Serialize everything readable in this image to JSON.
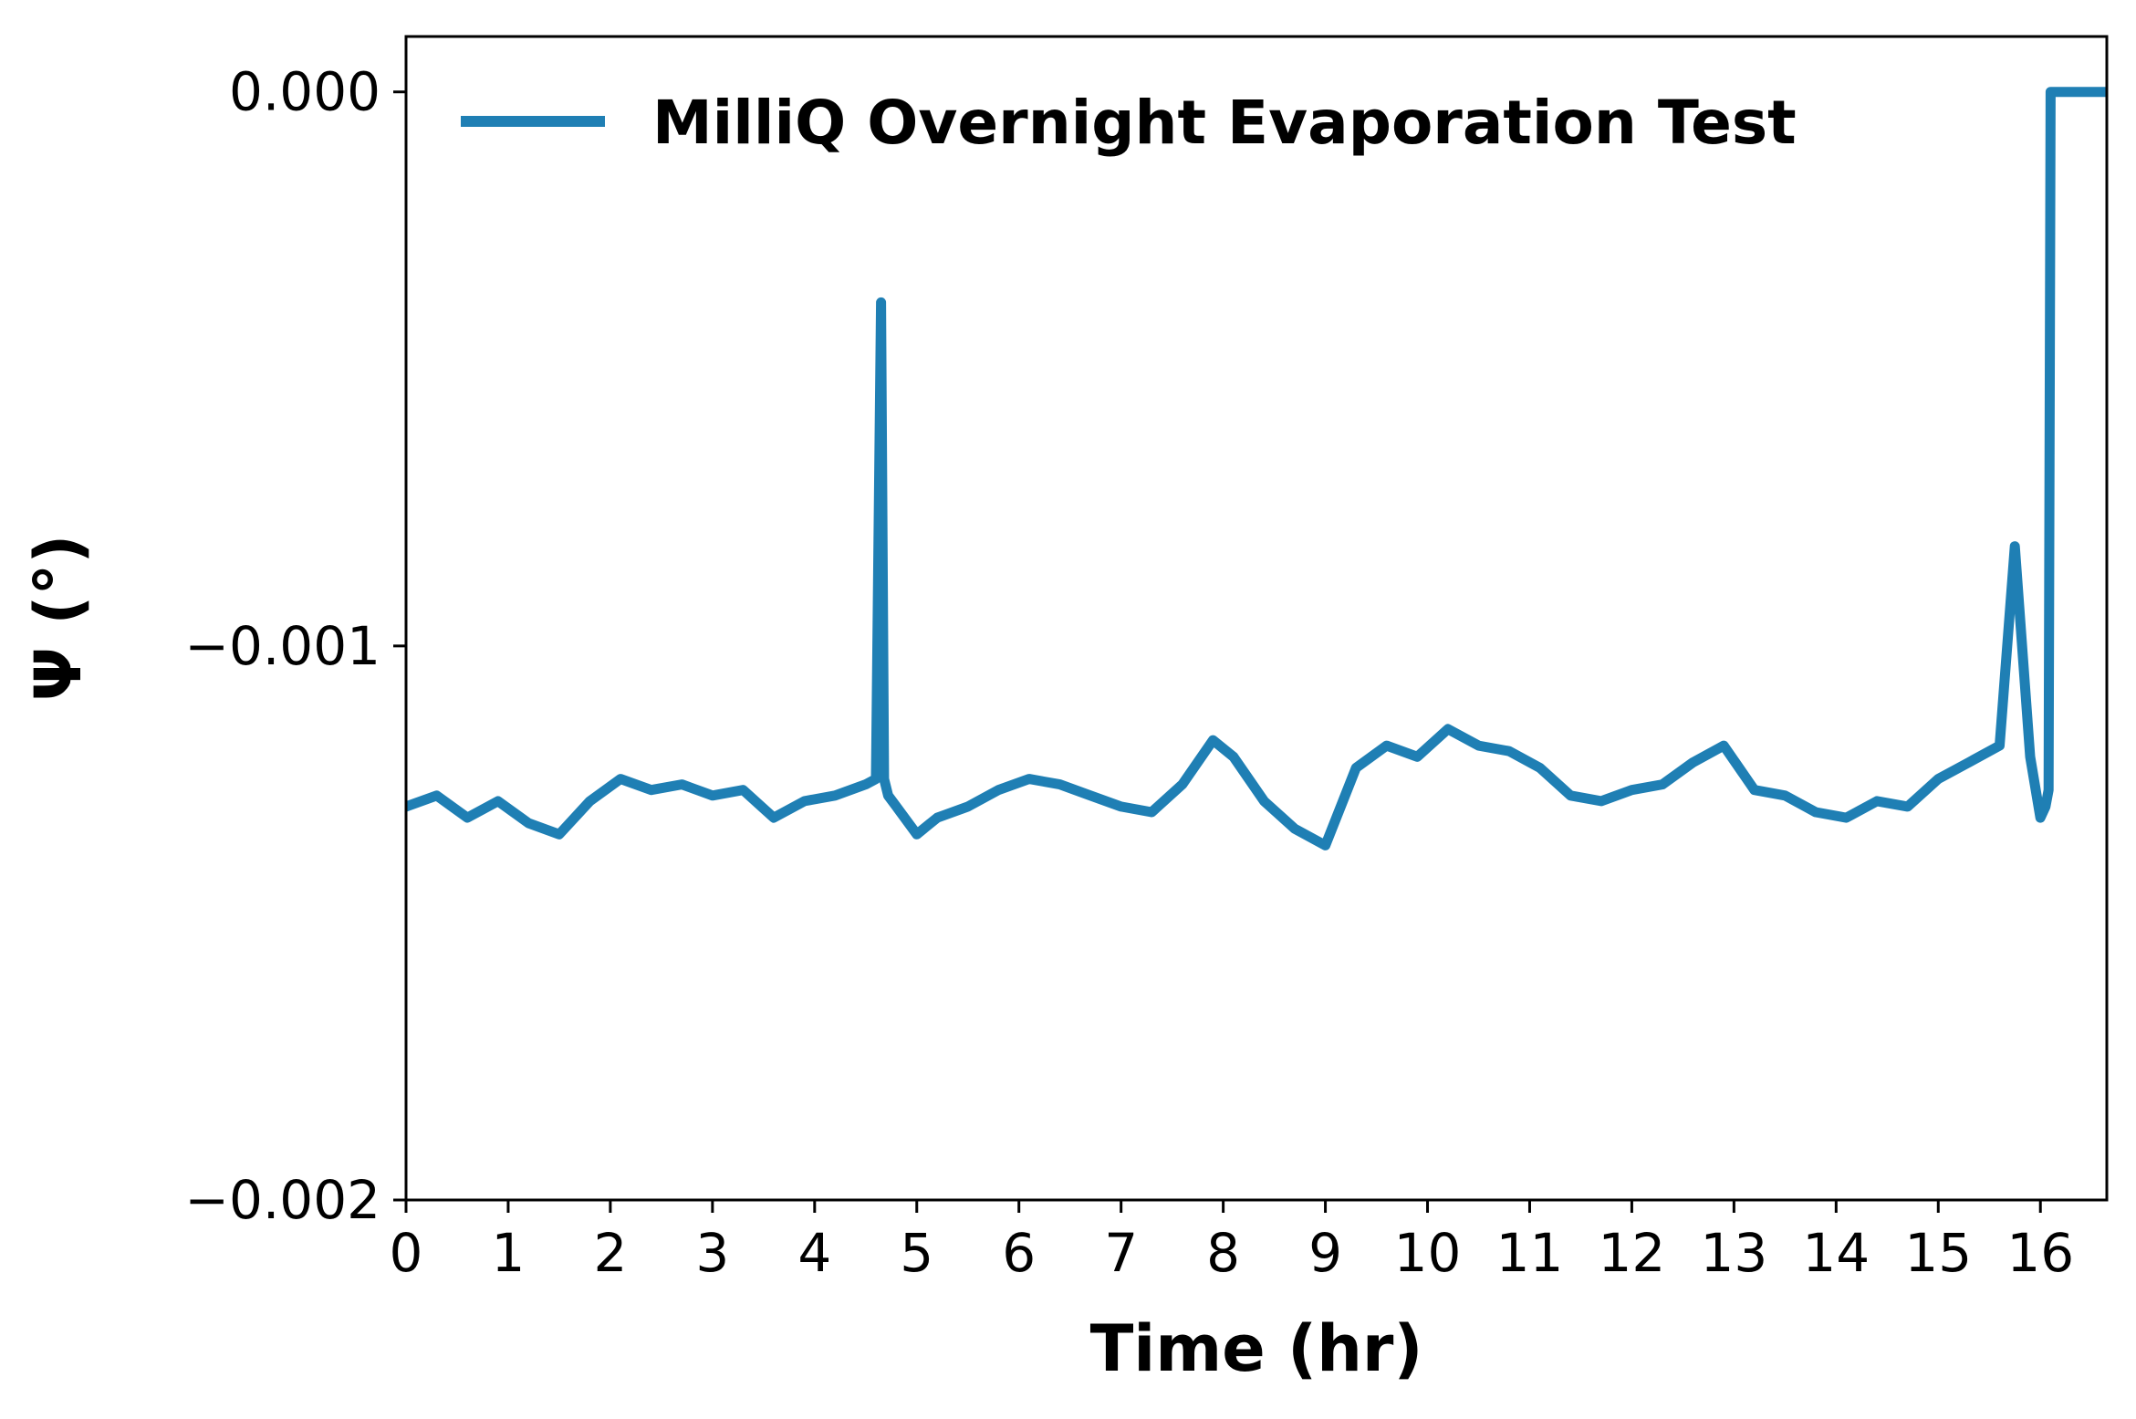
{
  "chart_data": {
    "type": "line",
    "xlabel": "Time (hr)",
    "ylabel": "Ψ (°)",
    "xlim": [
      0,
      16.65
    ],
    "ylim": [
      -0.002,
      0.0001
    ],
    "x_ticks": [
      0,
      1,
      2,
      3,
      4,
      5,
      6,
      7,
      8,
      9,
      10,
      11,
      12,
      13,
      14,
      15,
      16
    ],
    "x_tick_labels": [
      "0",
      "1",
      "2",
      "3",
      "4",
      "5",
      "6",
      "7",
      "8",
      "9",
      "10",
      "11",
      "12",
      "13",
      "14",
      "15",
      "16"
    ],
    "y_ticks": [
      0.0,
      -0.001,
      -0.002
    ],
    "y_tick_labels": [
      "0.000",
      "−0.001",
      "−0.002"
    ],
    "grid": false,
    "legend_position": "top",
    "series": [
      {
        "name": "MilliQ Overnight Evaporation Test",
        "color": "#1f7fb4",
        "x": [
          0.0,
          0.3,
          0.6,
          0.9,
          1.2,
          1.5,
          1.8,
          2.1,
          2.4,
          2.7,
          3.0,
          3.3,
          3.6,
          3.9,
          4.2,
          4.5,
          4.6,
          4.65,
          4.68,
          4.72,
          4.8,
          5.0,
          5.2,
          5.5,
          5.8,
          6.1,
          6.4,
          6.7,
          7.0,
          7.3,
          7.6,
          7.9,
          8.1,
          8.4,
          8.7,
          9.0,
          9.3,
          9.6,
          9.9,
          10.2,
          10.5,
          10.8,
          11.1,
          11.4,
          11.7,
          12.0,
          12.3,
          12.6,
          12.9,
          13.2,
          13.5,
          13.8,
          14.1,
          14.4,
          14.7,
          15.0,
          15.3,
          15.6,
          15.75,
          15.9,
          16.0,
          16.05,
          16.08,
          16.1,
          16.65
        ],
        "values": [
          -0.00129,
          -0.00127,
          -0.00131,
          -0.00128,
          -0.00132,
          -0.00134,
          -0.00128,
          -0.00124,
          -0.00126,
          -0.00125,
          -0.00127,
          -0.00126,
          -0.00131,
          -0.00128,
          -0.00127,
          -0.00125,
          -0.00124,
          -0.00038,
          -0.00124,
          -0.00127,
          -0.00129,
          -0.00134,
          -0.00131,
          -0.00129,
          -0.00126,
          -0.00124,
          -0.00125,
          -0.00127,
          -0.00129,
          -0.0013,
          -0.00125,
          -0.00117,
          -0.0012,
          -0.00128,
          -0.00133,
          -0.00136,
          -0.00122,
          -0.00118,
          -0.0012,
          -0.00115,
          -0.00118,
          -0.00119,
          -0.00122,
          -0.00127,
          -0.00128,
          -0.00126,
          -0.00125,
          -0.00121,
          -0.00118,
          -0.00126,
          -0.00127,
          -0.0013,
          -0.00131,
          -0.00128,
          -0.00129,
          -0.00124,
          -0.00121,
          -0.00118,
          -0.00082,
          -0.0012,
          -0.00131,
          -0.00129,
          -0.00126,
          0.0,
          0.0
        ]
      }
    ]
  }
}
